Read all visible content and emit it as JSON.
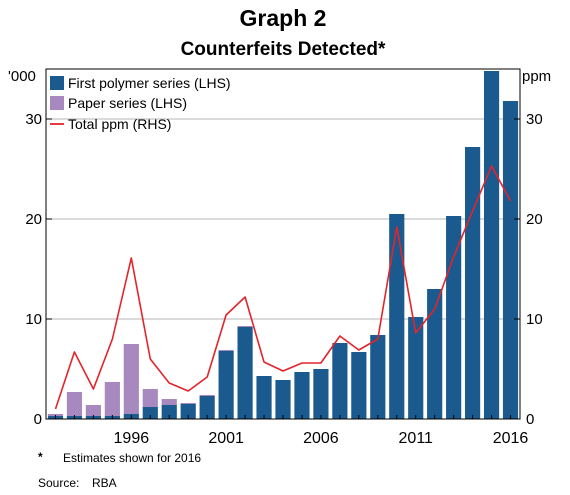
{
  "chart_data": {
    "type": "bar",
    "title": "Graph 2",
    "subtitle": "Counterfeits Detected*",
    "left_unit": "'000",
    "right_unit": "ppm",
    "y_left_ticks": [
      "0",
      "10",
      "20",
      "30"
    ],
    "y_right_ticks": [
      "0",
      "10",
      "20",
      "30"
    ],
    "ylim": [
      0,
      35
    ],
    "x_tick_labels": [
      "1996",
      "2001",
      "2006",
      "2011",
      "2016"
    ],
    "x_tick_years": [
      1996,
      2001,
      2006,
      2011,
      2016
    ],
    "years": [
      1992,
      1993,
      1994,
      1995,
      1996,
      1997,
      1998,
      1999,
      2000,
      2001,
      2002,
      2003,
      2004,
      2005,
      2006,
      2007,
      2008,
      2009,
      2010,
      2011,
      2012,
      2013,
      2014,
      2015,
      2016
    ],
    "legend_position": "top-left",
    "grid": true,
    "series": [
      {
        "name": "First polymer series (LHS)",
        "type": "bar",
        "axis": "left",
        "color": "#1b5a8e",
        "values": [
          0.3,
          0.3,
          0.3,
          0.3,
          0.5,
          1.2,
          1.4,
          1.5,
          2.3,
          6.8,
          9.2,
          4.3,
          3.9,
          4.7,
          5.0,
          7.6,
          6.7,
          8.4,
          20.5,
          10.2,
          13.0,
          20.3,
          27.2,
          34.8,
          31.8
        ]
      },
      {
        "name": "Paper series (LHS)",
        "type": "bar",
        "axis": "left",
        "color": "#a788bf",
        "values": [
          0.2,
          2.4,
          1.1,
          3.4,
          7.0,
          1.8,
          0.6,
          0.1,
          0.1,
          0.1,
          0.1,
          0,
          0,
          0,
          0,
          0,
          0,
          0,
          0,
          0,
          0,
          0,
          0,
          0,
          0
        ]
      },
      {
        "name": "Total ppm (RHS)",
        "type": "line",
        "axis": "right",
        "color": "#e3242b",
        "values": [
          1.0,
          6.7,
          3.0,
          8.0,
          16.1,
          6.0,
          3.6,
          2.8,
          4.2,
          10.4,
          12.2,
          5.7,
          4.8,
          5.6,
          5.6,
          8.3,
          6.9,
          8.0,
          19.2,
          8.6,
          11.0,
          16.2,
          20.8,
          25.3,
          21.8
        ]
      }
    ]
  },
  "footnote": {
    "marker": "*",
    "text": "Estimates shown for 2016",
    "source_label": "Source:",
    "source_value": "RBA"
  }
}
